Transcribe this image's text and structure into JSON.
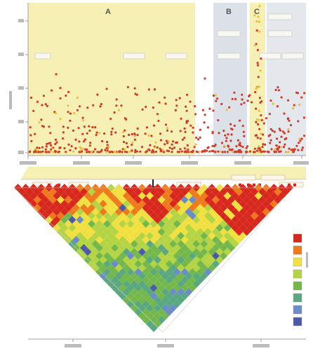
{
  "regions": [
    {
      "letter": "A",
      "fill": "#f6f0b4"
    },
    {
      "letter": "B",
      "fill": "#dde2e8"
    },
    {
      "letter": "C",
      "fill": "#f6f0b4"
    }
  ],
  "colors": {
    "panel_yellow": "#f6f0b4",
    "panel_grey": "#dde2e8",
    "point_red": "#d23a2a",
    "point_yellow": "#e8c03a",
    "axis": "#888888",
    "label_box": "#f8f8f0",
    "ld_high": "#d8281e",
    "ld_mid_high": "#ee7a1c",
    "ld_mid": "#f2e040",
    "ld_low_mid": "#b4d444",
    "ld_low": "#74b84c",
    "ld_lower": "#5aa880",
    "ld_lowest": "#6a8cc8",
    "ld_none": "#4a5aa8"
  },
  "ld_legend_swatches": [
    "#d8281e",
    "#ee7a1c",
    "#f2e040",
    "#b4d444",
    "#74b84c",
    "#5aa880",
    "#6a8cc8",
    "#4a5aa8"
  ],
  "marker_icon": "down-arrow-icon"
}
